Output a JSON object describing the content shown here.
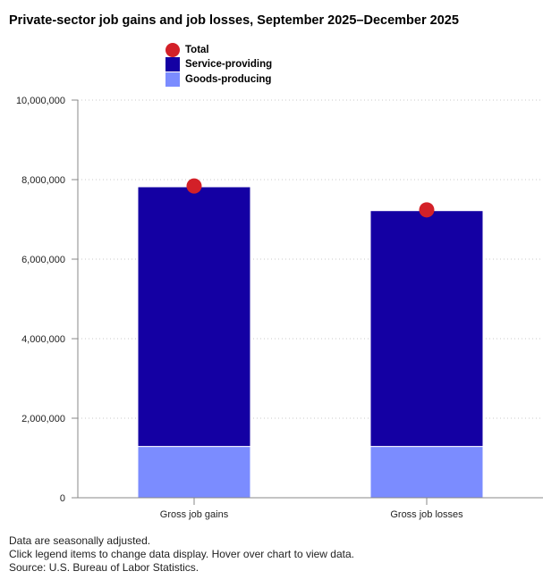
{
  "chart_data": {
    "type": "bar",
    "title": "Private-sector job gains and job losses, September 2025–December 2025",
    "categories": [
      "Gross job gains",
      "Gross job losses"
    ],
    "series": [
      {
        "name": "Goods-producing",
        "values": [
          1290000,
          1290000
        ],
        "color": "#7b8cff"
      },
      {
        "name": "Service-providing",
        "values": [
          6530000,
          5930000
        ],
        "color": "#1400a3"
      },
      {
        "name": "Total",
        "values": [
          7840000,
          7240000
        ],
        "color": "#d32028",
        "marker": "circle"
      }
    ],
    "stacked": true,
    "ylim": [
      0,
      10000000
    ],
    "yticks": [
      0,
      2000000,
      4000000,
      6000000,
      8000000,
      10000000
    ],
    "ytick_labels": [
      "0",
      "2,000,000",
      "4,000,000",
      "6,000,000",
      "8,000,000",
      "10,000,000"
    ],
    "xlabel": "",
    "ylabel": "",
    "grid": "horizontal dotted",
    "legend_position": "top-left"
  },
  "legend": [
    {
      "label": "Total",
      "color": "#d32028",
      "shape": "circle"
    },
    {
      "label": "Service-providing",
      "color": "#1400a3",
      "shape": "square"
    },
    {
      "label": "Goods-producing",
      "color": "#7b8cff",
      "shape": "square"
    }
  ],
  "footnotes": {
    "line1": "Data are seasonally adjusted.",
    "line2": "Click legend items to change data display. Hover over chart to view data.",
    "line3": "Source: U.S. Bureau of Labor Statistics."
  }
}
